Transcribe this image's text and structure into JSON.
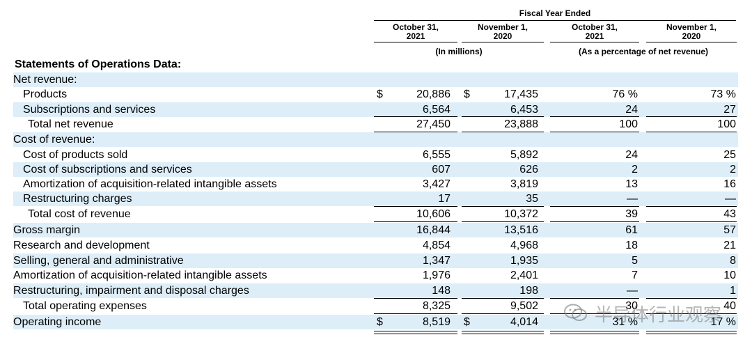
{
  "header": {
    "fiscal_year": "Fiscal Year Ended",
    "col1": [
      "October 31,",
      "2021"
    ],
    "col2": [
      "November 1,",
      "2020"
    ],
    "col3": [
      "October 31,",
      "2021"
    ],
    "col4": [
      "November 1,",
      "2020"
    ],
    "in_millions": "(In millions)",
    "as_percentage": "(As a percentage of net revenue)"
  },
  "section_title": "Statements of Operations Data:",
  "rows": [
    {
      "label": "Net revenue:",
      "c1": "",
      "c2": "",
      "c3": "",
      "c4": ""
    },
    {
      "label": "Products",
      "c1": "20,886",
      "c2": "17,435",
      "c3": "76 %",
      "c4": "73 %",
      "d1": "$",
      "d2": "$"
    },
    {
      "label": "Subscriptions and services",
      "c1": "6,564",
      "c2": "6,453",
      "c3": "24",
      "c4": "27"
    },
    {
      "label": "Total net revenue",
      "c1": "27,450",
      "c2": "23,888",
      "c3": "100",
      "c4": "100"
    },
    {
      "label": "Cost of revenue:",
      "c1": "",
      "c2": "",
      "c3": "",
      "c4": ""
    },
    {
      "label": "Cost of products sold",
      "c1": "6,555",
      "c2": "5,892",
      "c3": "24",
      "c4": "25"
    },
    {
      "label": "Cost of subscriptions and services",
      "c1": "607",
      "c2": "626",
      "c3": "2",
      "c4": "2"
    },
    {
      "label": "Amortization of acquisition-related intangible assets",
      "c1": "3,427",
      "c2": "3,819",
      "c3": "13",
      "c4": "16"
    },
    {
      "label": "Restructuring charges",
      "c1": "17",
      "c2": "35",
      "c3": "—",
      "c4": "—"
    },
    {
      "label": "Total cost of revenue",
      "c1": "10,606",
      "c2": "10,372",
      "c3": "39",
      "c4": "43"
    },
    {
      "label": "Gross margin",
      "c1": "16,844",
      "c2": "13,516",
      "c3": "61",
      "c4": "57"
    },
    {
      "label": "Research and development",
      "c1": "4,854",
      "c2": "4,968",
      "c3": "18",
      "c4": "21"
    },
    {
      "label": "Selling, general and administrative",
      "c1": "1,347",
      "c2": "1,935",
      "c3": "5",
      "c4": "8"
    },
    {
      "label": "Amortization of acquisition-related intangible assets",
      "c1": "1,976",
      "c2": "2,401",
      "c3": "7",
      "c4": "10"
    },
    {
      "label": "Restructuring, impairment and disposal charges",
      "c1": "148",
      "c2": "198",
      "c3": "—",
      "c4": "1"
    },
    {
      "label": "Total operating expenses",
      "c1": "8,325",
      "c2": "9,502",
      "c3": "30",
      "c4": "40"
    },
    {
      "label": "Operating income",
      "c1": "8,519",
      "c2": "4,014",
      "c3": "31 %",
      "c4": "17 %",
      "d1": "$",
      "d2": "$"
    }
  ],
  "watermark": "半导体行业观察"
}
